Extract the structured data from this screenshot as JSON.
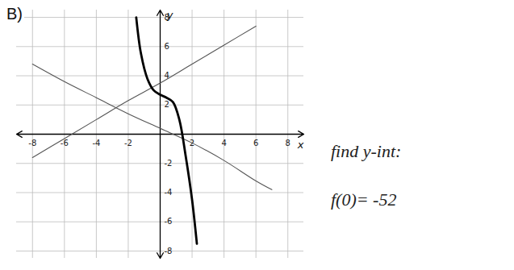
{
  "chart_data": {
    "type": "line",
    "title": "B)",
    "xlabel": "x",
    "ylabel": "y",
    "xlim": [
      -9,
      9
    ],
    "ylim": [
      -8.5,
      8.5
    ],
    "xticks": [
      -8,
      -6,
      -4,
      -2,
      2,
      4,
      6,
      8
    ],
    "yticks": [
      -8,
      -6,
      -4,
      -2,
      2,
      4,
      6,
      8
    ],
    "grid": true,
    "series": [
      {
        "color": "#555555",
        "line_style": "thin",
        "x": [
          -8,
          -6,
          -4,
          -2,
          0,
          2,
          4,
          6
        ],
        "values": [
          -1.6,
          -0.3,
          1.0,
          2.3,
          3.5,
          4.8,
          6.1,
          7.4
        ]
      },
      {
        "color": "#555555",
        "line_style": "thin",
        "x": [
          -8,
          -6,
          -4,
          -2,
          0,
          2,
          4,
          6,
          7
        ],
        "values": [
          4.8,
          3.6,
          2.5,
          1.4,
          0.4,
          -0.6,
          -1.8,
          -3.2,
          -3.8
        ]
      },
      {
        "color": "#000000",
        "line_style": "thick",
        "x": [
          -1.5,
          -1.2,
          -0.8,
          -0.4,
          0,
          0.4,
          0.8,
          1.2,
          1.6,
          2.0,
          2.3
        ],
        "values": [
          8.0,
          5.5,
          3.8,
          3.0,
          2.7,
          2.5,
          2.2,
          1.0,
          -1.5,
          -4.5,
          -7.5
        ]
      }
    ],
    "annotations": [
      "find y-int:",
      "f(0)= -52"
    ]
  }
}
